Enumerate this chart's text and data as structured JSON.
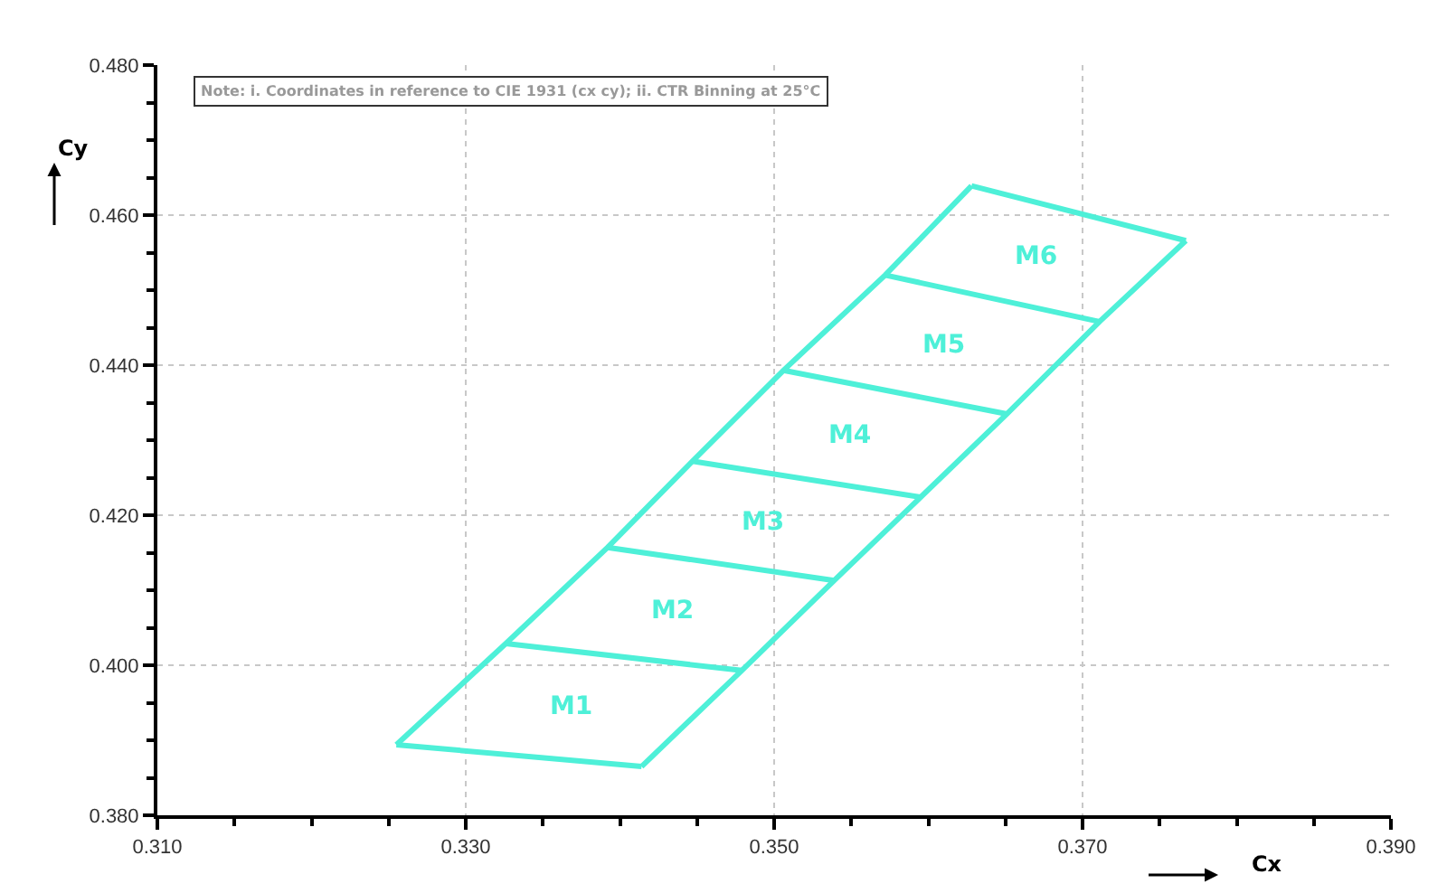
{
  "chart_data": {
    "type": "line",
    "xlabel": "Cx",
    "ylabel": "Cy",
    "annotations": [
      "Note: i. Coordinates in reference to CIE 1931 (cx cy); ii. CTR Binning at 25°C",
      "M1",
      "M2",
      "M3",
      "M4",
      "M5",
      "M6"
    ],
    "series": [
      {
        "color": "#4ef0d8",
        "x": [
          0.3255,
          0.3326,
          0.3392,
          0.3447,
          0.3506,
          0.3572,
          0.3628
        ],
        "values": [
          0.3894,
          0.4029,
          0.4157,
          0.4272,
          0.4393,
          0.452,
          0.4639
        ]
      },
      {
        "color": "#4ef0d8",
        "x": [
          0.3414,
          0.3479,
          0.3539,
          0.3595,
          0.3651,
          0.3711,
          0.3767
        ],
        "values": [
          0.3865,
          0.3993,
          0.4113,
          0.4224,
          0.4335,
          0.4458,
          0.4566
        ]
      },
      {
        "color": "#4ef0d8",
        "x": [
          0.3255,
          0.3414
        ],
        "values": [
          0.3894,
          0.3865
        ]
      },
      {
        "color": "#4ef0d8",
        "x": [
          0.3326,
          0.3479
        ],
        "values": [
          0.4029,
          0.3993
        ]
      },
      {
        "color": "#4ef0d8",
        "x": [
          0.3392,
          0.3539
        ],
        "values": [
          0.4157,
          0.4113
        ]
      },
      {
        "color": "#4ef0d8",
        "x": [
          0.3447,
          0.3595
        ],
        "values": [
          0.4272,
          0.4224
        ]
      },
      {
        "color": "#4ef0d8",
        "x": [
          0.3506,
          0.3651
        ],
        "values": [
          0.4393,
          0.4335
        ]
      },
      {
        "color": "#4ef0d8",
        "x": [
          0.3572,
          0.3711
        ],
        "values": [
          0.452,
          0.4458
        ]
      },
      {
        "color": "#4ef0d8",
        "x": [
          0.3628,
          0.3767
        ],
        "values": [
          0.4639,
          0.4566
        ]
      }
    ],
    "xlim": [
      0.31,
      0.39
    ],
    "xticks": [
      {
        "value": 0.31,
        "label": "0.310"
      },
      {
        "value": 0.315,
        "label": null
      },
      {
        "value": 0.32,
        "label": null
      },
      {
        "value": 0.325,
        "label": null
      },
      {
        "value": 0.33,
        "label": "0.330"
      },
      {
        "value": 0.335,
        "label": null
      },
      {
        "value": 0.34,
        "label": null
      },
      {
        "value": 0.345,
        "label": null
      },
      {
        "value": 0.35,
        "label": "0.350"
      },
      {
        "value": 0.355,
        "label": null
      },
      {
        "value": 0.36,
        "label": null
      },
      {
        "value": 0.365,
        "label": null
      },
      {
        "value": 0.37,
        "label": "0.370"
      },
      {
        "value": 0.375,
        "label": null
      },
      {
        "value": 0.38,
        "label": null
      },
      {
        "value": 0.385,
        "label": null
      },
      {
        "value": 0.39,
        "label": "0.390"
      }
    ],
    "ylim": [
      0.38,
      0.48
    ],
    "yticks": [
      {
        "value": 0.38,
        "label": "0.380"
      },
      {
        "value": 0.385,
        "label": null
      },
      {
        "value": 0.39,
        "label": null
      },
      {
        "value": 0.395,
        "label": null
      },
      {
        "value": 0.4,
        "label": "0.400"
      },
      {
        "value": 0.405,
        "label": null
      },
      {
        "value": 0.41,
        "label": null
      },
      {
        "value": 0.415,
        "label": null
      },
      {
        "value": 0.42,
        "label": "0.420"
      },
      {
        "value": 0.425,
        "label": null
      },
      {
        "value": 0.43,
        "label": null
      },
      {
        "value": 0.435,
        "label": null
      },
      {
        "value": 0.44,
        "label": "0.440"
      },
      {
        "value": 0.445,
        "label": null
      },
      {
        "value": 0.45,
        "label": null
      },
      {
        "value": 0.455,
        "label": null
      },
      {
        "value": 0.46,
        "label": "0.460"
      },
      {
        "value": 0.465,
        "label": null
      },
      {
        "value": 0.47,
        "label": null
      },
      {
        "value": 0.475,
        "label": null
      },
      {
        "value": 0.48,
        "label": "0.480"
      }
    ],
    "grid": true,
    "marker": "none",
    "line_style": "solid"
  }
}
